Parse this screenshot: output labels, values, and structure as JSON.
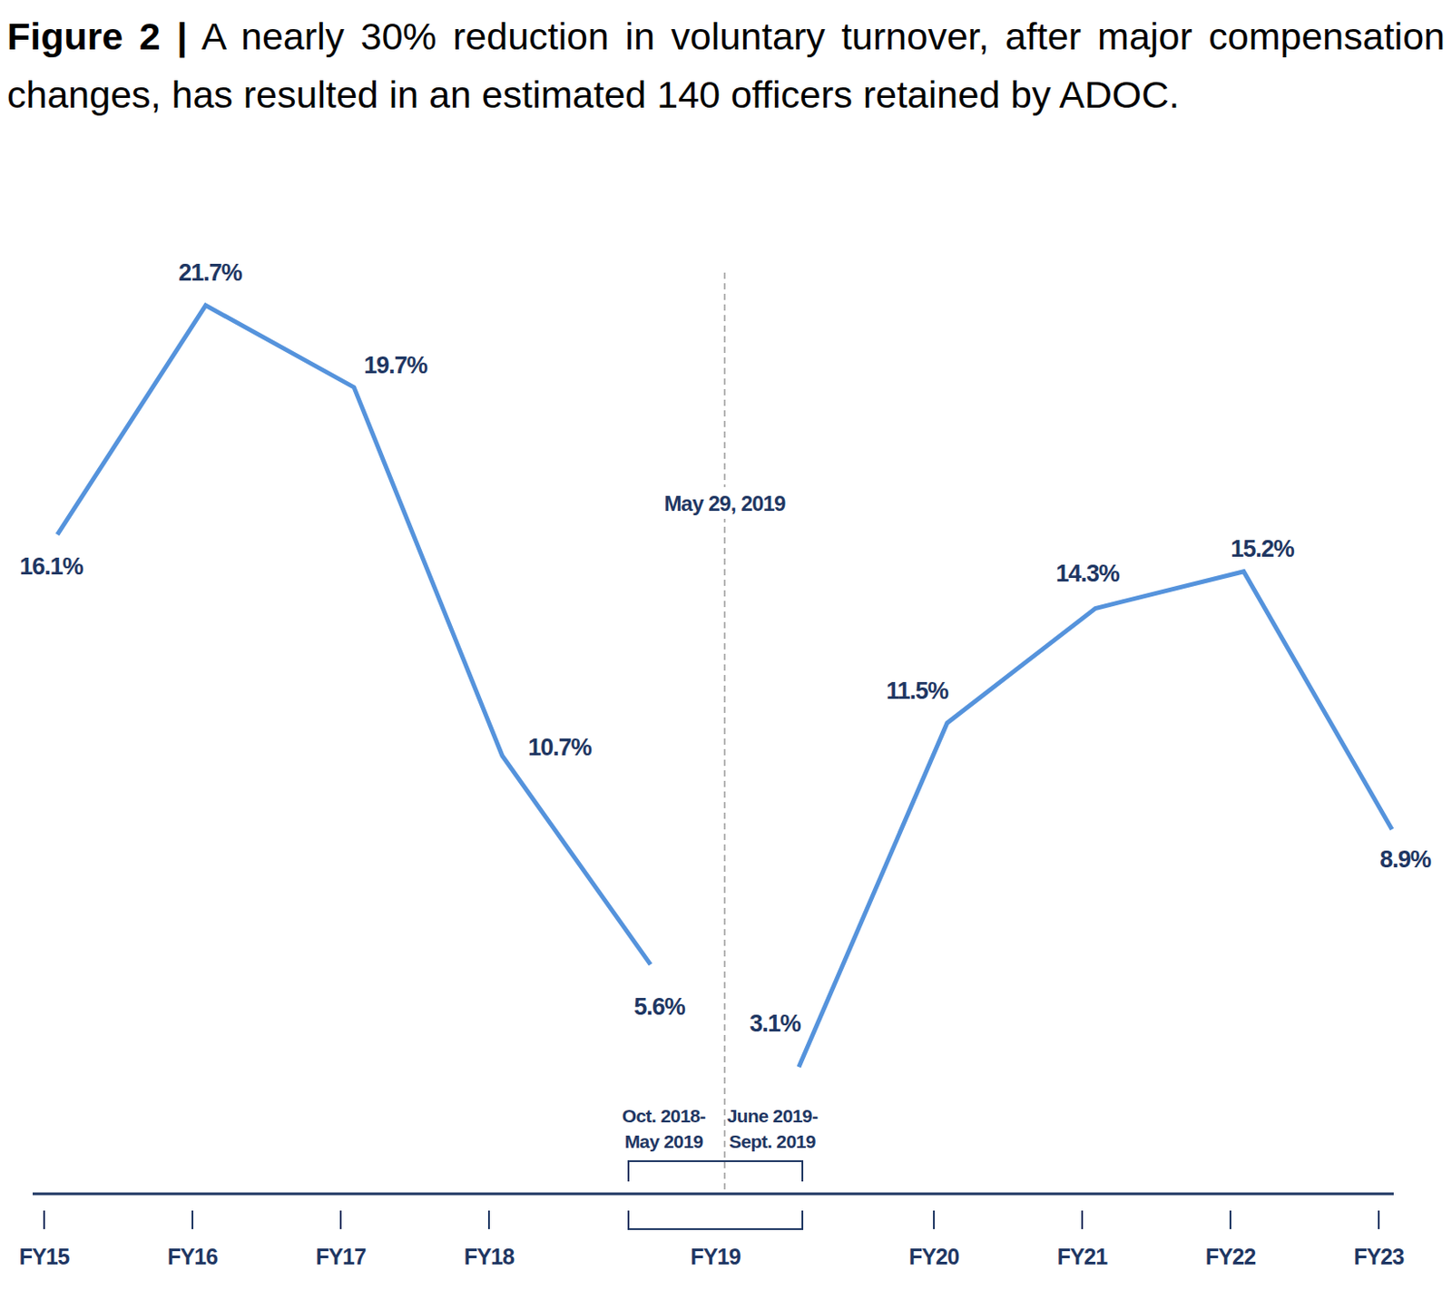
{
  "chart_data": {
    "type": "line",
    "title": "Figure 2 | A nearly 30% reduction in voluntary turnover, after major compensation changes, has resulted in an estimated 140 officers retained by ADOC.",
    "categories": [
      "FY15",
      "FY16",
      "FY17",
      "FY18",
      "Oct. 2018-May 2019",
      "June 2019-Sept. 2019",
      "FY20",
      "FY21",
      "FY22",
      "FY23"
    ],
    "series": [
      {
        "color": "#5593dc",
        "values": [
          16.1,
          21.7,
          19.7,
          10.7,
          5.6,
          null,
          null,
          null,
          null,
          null
        ],
        "value_labels": [
          "16.1%",
          "21.7%",
          "19.7%",
          "10.7%",
          "5.6%",
          null,
          null,
          null,
          null,
          null
        ]
      },
      {
        "color": "#5593dc",
        "values": [
          null,
          null,
          null,
          null,
          null,
          3.1,
          11.5,
          14.3,
          15.2,
          8.9
        ],
        "value_labels": [
          null,
          null,
          null,
          null,
          null,
          "3.1%",
          "11.5%",
          "14.3%",
          "15.2%",
          "8.9%"
        ]
      }
    ],
    "ylim": [
      0,
      22.5
    ],
    "grid": false,
    "tick_labels": "x",
    "data_labels": true,
    "annotations": [
      {
        "text": "May 29, 2019",
        "between": [
          "Oct. 2018-May 2019",
          "June 2019-Sept. 2019"
        ],
        "line_style": "dashed"
      },
      {
        "text": "FY19",
        "spans": [
          "Oct. 2018-May 2019",
          "June 2019-Sept. 2019"
        ]
      }
    ]
  }
}
